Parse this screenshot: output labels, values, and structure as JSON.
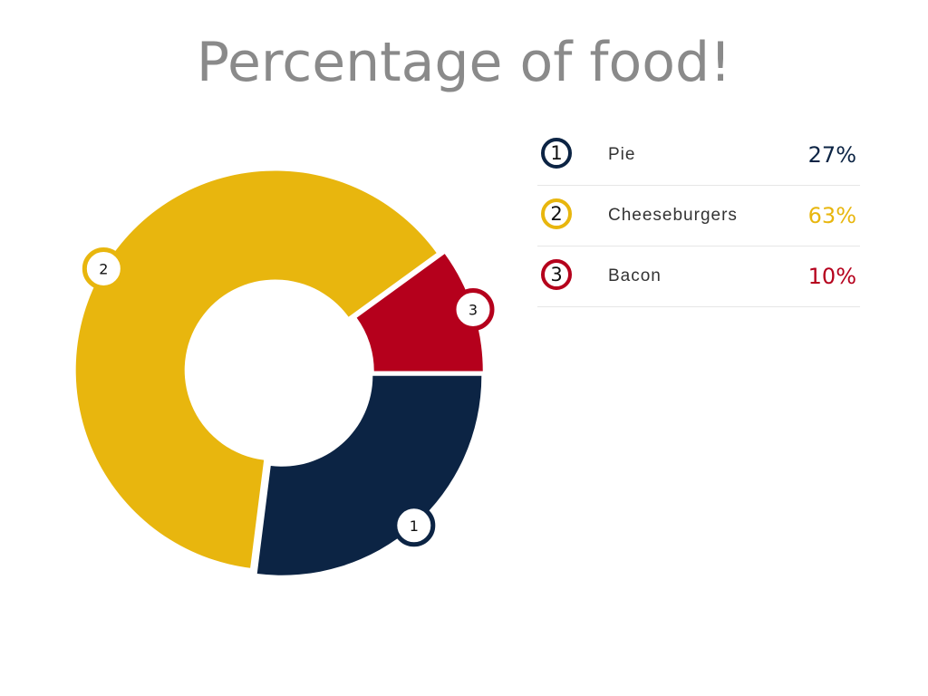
{
  "chart_data": {
    "type": "pie",
    "title": "Percentage of food!",
    "slices": [
      {
        "index": "1",
        "label": "Pie",
        "value": 27,
        "display": "27%",
        "color": "#0c2444"
      },
      {
        "index": "2",
        "label": "Cheeseburgers",
        "value": 63,
        "display": "63%",
        "color": "#e8b60e"
      },
      {
        "index": "3",
        "label": "Bacon",
        "value": 10,
        "display": "10%",
        "color": "#b5001c"
      }
    ],
    "donut": true,
    "legend": "right"
  }
}
